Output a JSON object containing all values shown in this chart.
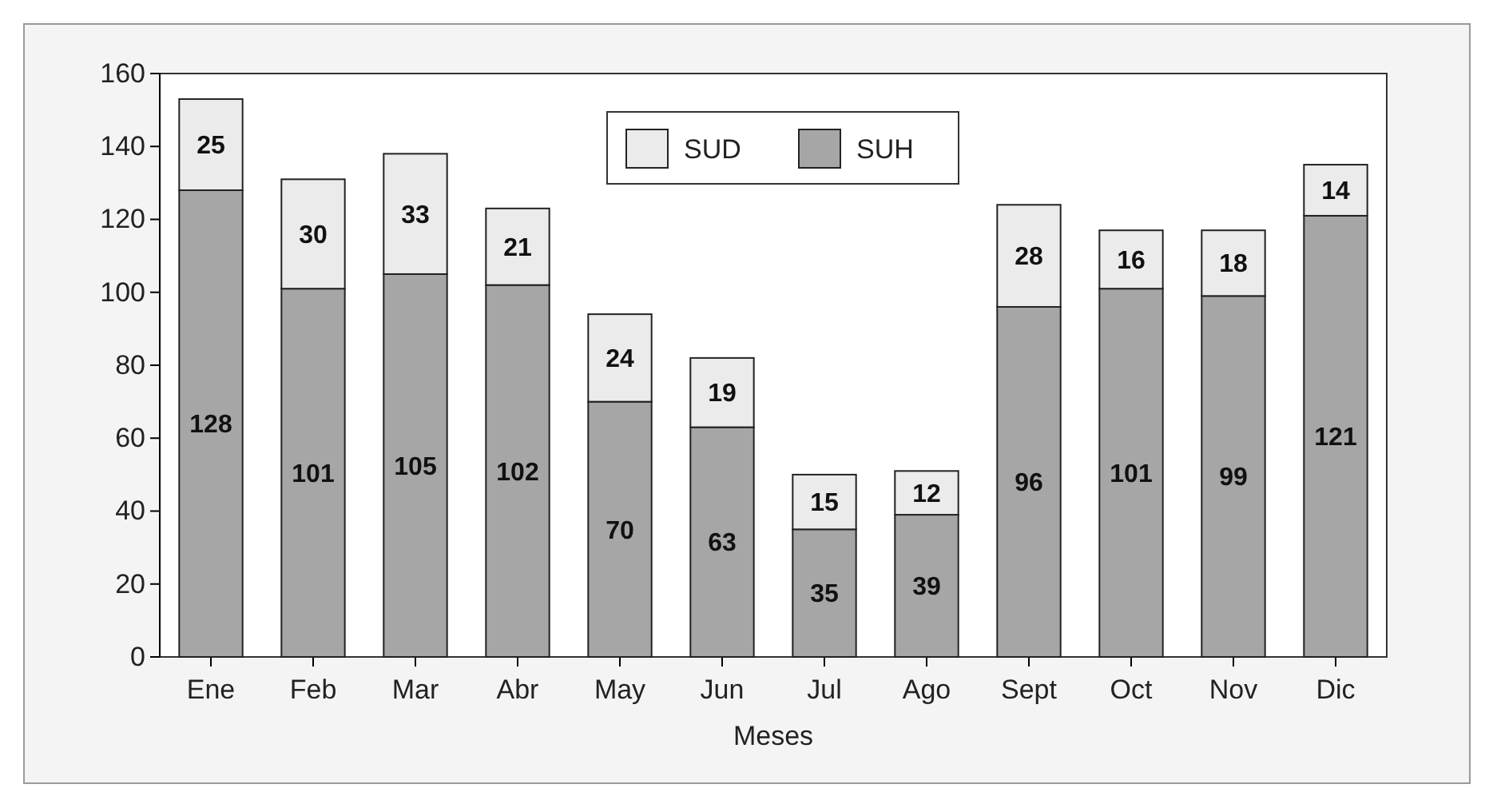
{
  "chart_data": {
    "type": "bar",
    "stacked": true,
    "xlabel": "Meses",
    "categories": [
      "Ene",
      "Feb",
      "Mar",
      "Abr",
      "May",
      "Jun",
      "Jul",
      "Ago",
      "Sept",
      "Oct",
      "Nov",
      "Dic"
    ],
    "series": [
      {
        "name": "SUH",
        "color": "#a6a6a6",
        "values": [
          128,
          101,
          105,
          102,
          70,
          63,
          35,
          39,
          96,
          101,
          99,
          121
        ]
      },
      {
        "name": "SUD",
        "color": "#ebebeb",
        "values": [
          25,
          30,
          33,
          21,
          24,
          19,
          15,
          12,
          28,
          16,
          18,
          14
        ]
      }
    ],
    "ylim": [
      0,
      160
    ],
    "yticks": [
      0,
      20,
      40,
      60,
      80,
      100,
      120,
      140,
      160
    ],
    "grid": false,
    "legend": "top",
    "data_labels": true
  }
}
